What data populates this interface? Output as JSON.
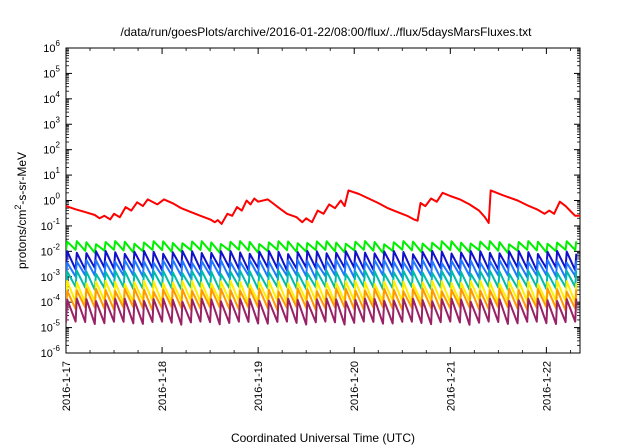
{
  "chart_data": {
    "type": "line",
    "title": "/data/run/goesPlots/archive/2016-01-22/08:00/flux/../flux/5daysMarsFluxes.txt",
    "xlabel": "Coordinated Universal Time (UTC)",
    "ylabel": "protons/cm2-s-sr-MeV",
    "y_scale": "log",
    "ylim": [
      1e-06,
      1000000.0
    ],
    "xlim_days": [
      0,
      5.35
    ],
    "x_tick_labels": [
      "2016-1-17",
      "2016-1-18",
      "2016-1-19",
      "2016-1-20",
      "2016-1-21",
      "2016-1-22"
    ],
    "y_tick_labels": [
      "10-6",
      "10-5",
      "10-4",
      "10-3",
      "10-2",
      "10-1",
      "100",
      "101",
      "102",
      "103",
      "104",
      "105",
      "106"
    ],
    "grid": false,
    "legend": "none",
    "series": [
      {
        "color": "#ff0000",
        "points": [
          [
            0.0,
            0.6
          ],
          [
            0.1,
            0.45
          ],
          [
            0.2,
            0.35
          ],
          [
            0.3,
            0.27
          ],
          [
            0.35,
            0.2
          ],
          [
            0.4,
            0.25
          ],
          [
            0.46,
            0.18
          ],
          [
            0.5,
            0.3
          ],
          [
            0.56,
            0.22
          ],
          [
            0.62,
            0.55
          ],
          [
            0.68,
            0.4
          ],
          [
            0.74,
            0.85
          ],
          [
            0.8,
            0.6
          ],
          [
            0.85,
            1.1
          ],
          [
            0.95,
            0.7
          ],
          [
            1.02,
            1.1
          ],
          [
            1.12,
            0.75
          ],
          [
            1.2,
            0.5
          ],
          [
            1.3,
            0.35
          ],
          [
            1.4,
            0.25
          ],
          [
            1.5,
            0.18
          ],
          [
            1.55,
            0.14
          ],
          [
            1.58,
            0.17
          ],
          [
            1.62,
            0.12
          ],
          [
            1.68,
            0.3
          ],
          [
            1.73,
            0.25
          ],
          [
            1.78,
            0.55
          ],
          [
            1.83,
            0.4
          ],
          [
            1.88,
            1.0
          ],
          [
            1.92,
            0.7
          ],
          [
            1.96,
            1.2
          ],
          [
            2.0,
            0.9
          ],
          [
            2.1,
            1.1
          ],
          [
            2.15,
            0.8
          ],
          [
            2.22,
            0.5
          ],
          [
            2.3,
            0.3
          ],
          [
            2.4,
            0.22
          ],
          [
            2.46,
            0.14
          ],
          [
            2.5,
            0.2
          ],
          [
            2.56,
            0.14
          ],
          [
            2.62,
            0.4
          ],
          [
            2.68,
            0.3
          ],
          [
            2.74,
            0.7
          ],
          [
            2.8,
            0.5
          ],
          [
            2.86,
            1.0
          ],
          [
            2.9,
            0.6
          ],
          [
            2.94,
            2.5
          ],
          [
            3.05,
            1.8
          ],
          [
            3.15,
            1.2
          ],
          [
            3.25,
            0.8
          ],
          [
            3.35,
            0.5
          ],
          [
            3.45,
            0.35
          ],
          [
            3.55,
            0.25
          ],
          [
            3.62,
            0.18
          ],
          [
            3.66,
            0.16
          ],
          [
            3.69,
            0.8
          ],
          [
            3.74,
            0.6
          ],
          [
            3.8,
            1.2
          ],
          [
            3.86,
            0.9
          ],
          [
            3.92,
            2.0
          ],
          [
            4.0,
            1.5
          ],
          [
            4.1,
            1.1
          ],
          [
            4.2,
            0.7
          ],
          [
            4.3,
            0.4
          ],
          [
            4.36,
            0.22
          ],
          [
            4.4,
            0.13
          ],
          [
            4.42,
            2.5
          ],
          [
            4.55,
            1.6
          ],
          [
            4.7,
            1.0
          ],
          [
            4.82,
            0.6
          ],
          [
            4.9,
            0.45
          ],
          [
            4.98,
            0.3
          ],
          [
            5.03,
            0.4
          ],
          [
            5.08,
            0.3
          ],
          [
            5.14,
            0.9
          ],
          [
            5.2,
            0.6
          ],
          [
            5.26,
            0.35
          ],
          [
            5.3,
            0.25
          ],
          [
            5.35,
            0.25
          ]
        ]
      },
      {
        "color": "#00ee00",
        "base": 0.01,
        "peak": 0.022,
        "spikes": [
          5.0,
          0.02,
          0.025
        ]
      },
      {
        "color": "#1111cc",
        "base": 0.002,
        "peak": 0.009,
        "spikes": [
          5.0,
          0.006,
          0.004
        ]
      },
      {
        "color": "#2277ff",
        "base": 0.001,
        "peak": 0.004,
        "spikes": [
          5.0,
          0.003,
          0.002
        ]
      },
      {
        "color": "#00bbaa",
        "base": 0.00035,
        "peak": 0.0015,
        "spikes": [
          5.0,
          0.001,
          0.0006
        ]
      },
      {
        "color": "#ffee00",
        "base": 0.0001,
        "peak": 0.0006,
        "spikes": [
          5.0,
          0.0004,
          0.0003
        ]
      },
      {
        "color": "#ff9900",
        "base": 5.5e-05,
        "peak": 0.0003,
        "spikes": [
          5.0,
          0.0002,
          0.00015
        ]
      },
      {
        "color": "#992266",
        "base": 1.5e-05,
        "peak": 0.00012,
        "spikes": [
          5.0,
          8e-05,
          5e-05
        ]
      }
    ]
  }
}
